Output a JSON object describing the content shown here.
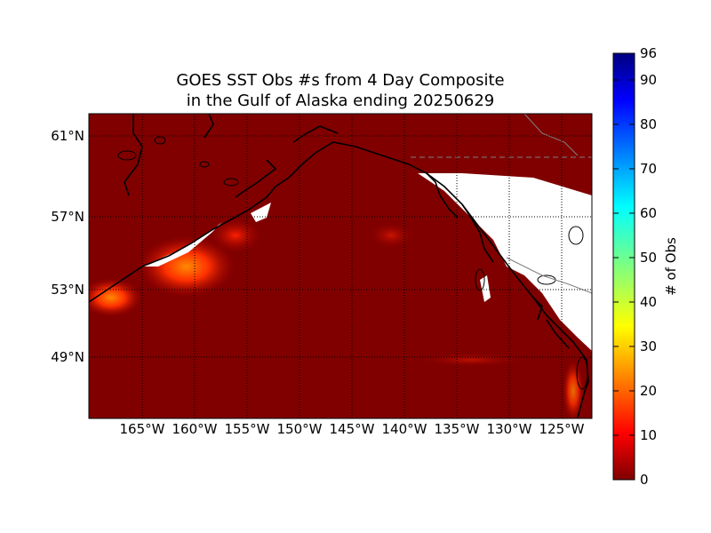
{
  "title": {
    "line1": "GOES SST Obs #s from 4 Day Composite",
    "line2": "in the Gulf of Alaska ending 20250629"
  },
  "map": {
    "lat_labels": [
      "61°N",
      "57°N",
      "53°N",
      "49°N"
    ],
    "lon_labels": [
      "165°W",
      "160°W",
      "155°W",
      "150°W",
      "145°W",
      "140°W",
      "135°W",
      "130°W",
      "125°W"
    ],
    "ocean_color": "#800000",
    "land_color": "#800000",
    "no_data_color": "#ffffff"
  },
  "colorbar": {
    "label": "# of Obs",
    "ticks": [
      "96",
      "90",
      "80",
      "70",
      "60",
      "50",
      "40",
      "30",
      "20",
      "10",
      "0"
    ],
    "colormap": "jet"
  }
}
